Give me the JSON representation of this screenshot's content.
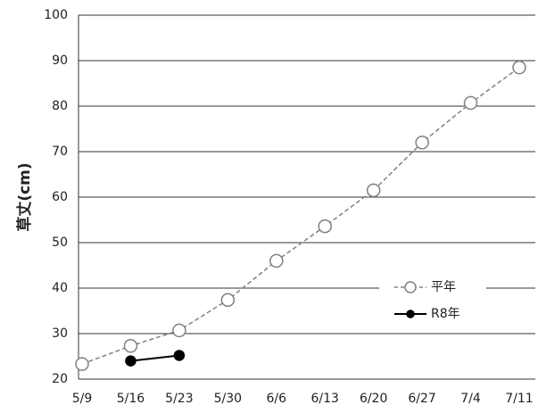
{
  "chart_data": {
    "type": "line",
    "y_label": "草丈(cm)",
    "categories": [
      "5/9",
      "5/16",
      "5/23",
      "5/30",
      "6/6",
      "6/13",
      "6/20",
      "6/27",
      "7/4",
      "7/11"
    ],
    "series": [
      {
        "name": "平年",
        "color": "#808080",
        "values": [
          23.3,
          27.3,
          30.7,
          37.4,
          46.0,
          53.6,
          61.5,
          72.0,
          80.7,
          88.5
        ]
      },
      {
        "name": "R8年",
        "color": "#000000",
        "values": [
          null,
          24.0,
          25.2,
          null,
          null,
          null,
          null,
          null,
          null,
          null
        ]
      }
    ],
    "ylim": [
      20,
      100
    ],
    "yticks": [
      20,
      30,
      40,
      50,
      60,
      70,
      80,
      90,
      100
    ],
    "grid": true,
    "legend": "right"
  }
}
